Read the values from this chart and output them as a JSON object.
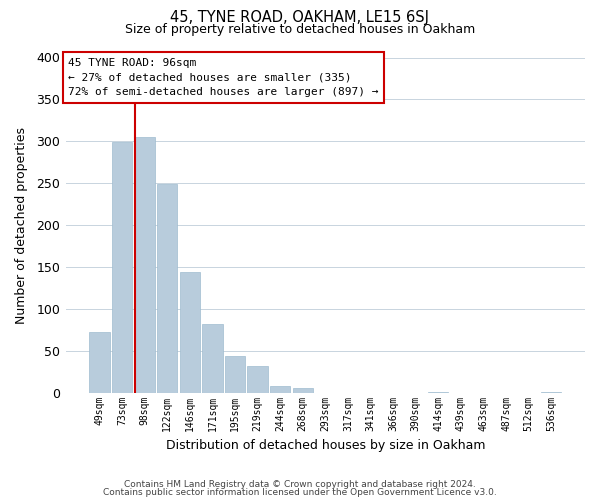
{
  "title": "45, TYNE ROAD, OAKHAM, LE15 6SJ",
  "subtitle": "Size of property relative to detached houses in Oakham",
  "xlabel": "Distribution of detached houses by size in Oakham",
  "ylabel": "Number of detached properties",
  "categories": [
    "49sqm",
    "73sqm",
    "98sqm",
    "122sqm",
    "146sqm",
    "171sqm",
    "195sqm",
    "219sqm",
    "244sqm",
    "268sqm",
    "293sqm",
    "317sqm",
    "341sqm",
    "366sqm",
    "390sqm",
    "414sqm",
    "439sqm",
    "463sqm",
    "487sqm",
    "512sqm",
    "536sqm"
  ],
  "values": [
    73,
    299,
    305,
    249,
    144,
    82,
    44,
    32,
    8,
    6,
    0,
    0,
    0,
    0,
    0,
    1,
    0,
    0,
    0,
    0,
    1
  ],
  "bar_color": "#b8ccdc",
  "bar_edge_color": "#a0bcd0",
  "highlight_line_color": "#cc0000",
  "highlight_bar_index": 2,
  "ylim": [
    0,
    400
  ],
  "yticks": [
    0,
    50,
    100,
    150,
    200,
    250,
    300,
    350,
    400
  ],
  "annotation_title": "45 TYNE ROAD: 96sqm",
  "annotation_line1": "← 27% of detached houses are smaller (335)",
  "annotation_line2": "72% of semi-detached houses are larger (897) →",
  "footer1": "Contains HM Land Registry data © Crown copyright and database right 2024.",
  "footer2": "Contains public sector information licensed under the Open Government Licence v3.0.",
  "background_color": "#ffffff",
  "grid_color": "#c8d4de"
}
